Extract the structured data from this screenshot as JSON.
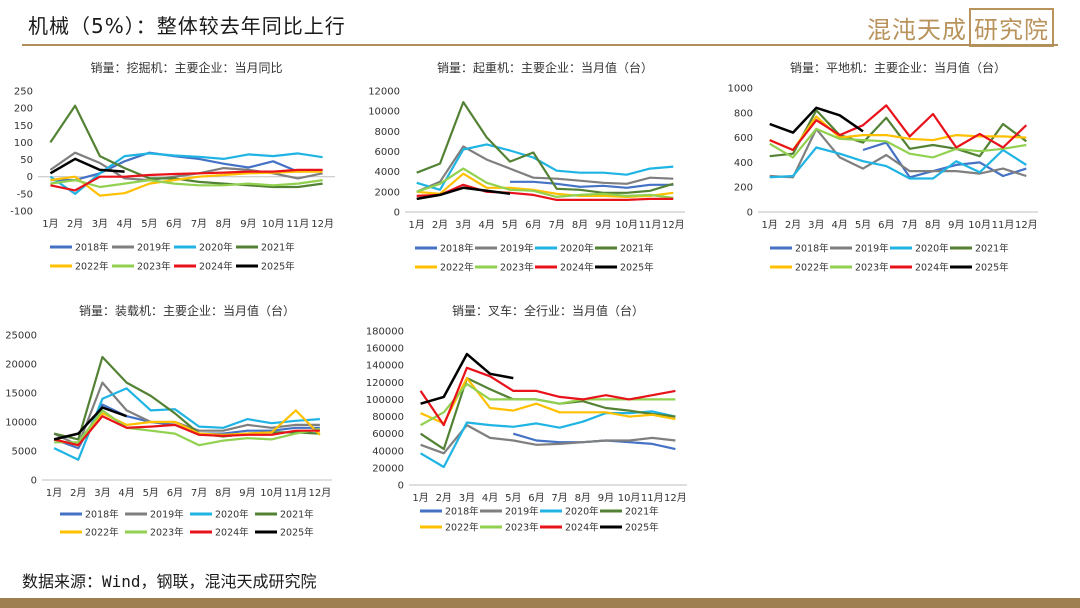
{
  "header": {
    "title": "机械（5%）：整体较去年同比上行",
    "logo_text": "混沌天成",
    "logo_box_text": "研究院"
  },
  "source": "数据来源：Wind，钢联，混沌天成研究院",
  "colors": {
    "2018年": "#4472c4",
    "2019年": "#7f7f7f",
    "2020年": "#1fb4e3",
    "2021年": "#548235",
    "2022年": "#ffc000",
    "2023年": "#92d050",
    "2024年": "#e8121a",
    "2025年": "#000000"
  },
  "chart_data": [
    {
      "type": "line",
      "title": "销量：挖掘机：主要企业：当月同比",
      "categories": [
        "1月",
        "2月",
        "3月",
        "4月",
        "5月",
        "6月",
        "7月",
        "8月",
        "9月",
        "10月",
        "11月",
        "12月"
      ],
      "ylim": [
        -100,
        250
      ],
      "yticks": [
        -100,
        -50,
        0,
        50,
        100,
        150,
        200,
        250
      ],
      "legend_position": "bottom",
      "series": [
        {
          "name": "2018年",
          "values": [
            -10,
            -10,
            10,
            45,
            70,
            60,
            52,
            38,
            27,
            45,
            15,
            18
          ]
        },
        {
          "name": "2019年",
          "values": [
            20,
            70,
            40,
            -5,
            -10,
            0,
            10,
            25,
            20,
            10,
            -5,
            10
          ]
        },
        {
          "name": "2020年",
          "values": [
            0,
            -50,
            10,
            60,
            68,
            62,
            58,
            52,
            65,
            60,
            68,
            57
          ]
        },
        {
          "name": "2021年",
          "values": [
            100,
            207,
            60,
            25,
            -5,
            -5,
            -15,
            -20,
            -25,
            -30,
            -30,
            -20
          ]
        },
        {
          "name": "2022年",
          "values": [
            -10,
            0,
            -55,
            -48,
            -20,
            -10,
            0,
            5,
            10,
            12,
            15,
            15
          ]
        },
        {
          "name": "2023年",
          "values": [
            -20,
            -10,
            -30,
            -20,
            -10,
            -20,
            -25,
            -25,
            -20,
            -25,
            -20,
            -10
          ]
        },
        {
          "name": "2024年",
          "values": [
            -25,
            -40,
            0,
            0,
            5,
            8,
            10,
            12,
            15,
            15,
            20,
            20
          ]
        },
        {
          "name": "2025年",
          "values": [
            10,
            52,
            20,
            15,
            null,
            null,
            null,
            null,
            null,
            null,
            null,
            null
          ]
        }
      ]
    },
    {
      "type": "line",
      "title": "销量：起重机：主要企业：当月值（台）",
      "categories": [
        "1月",
        "2月",
        "3月",
        "4月",
        "5月",
        "6月",
        "7月",
        "8月",
        "9月",
        "10月",
        "11月",
        "12月"
      ],
      "ylim": [
        0,
        12000
      ],
      "yticks": [
        0,
        2000,
        4000,
        6000,
        8000,
        10000,
        12000
      ],
      "legend_position": "bottom",
      "series": [
        {
          "name": "2018年",
          "values": [
            null,
            null,
            null,
            null,
            3000,
            3000,
            2800,
            2500,
            2600,
            2400,
            2700,
            2700
          ]
        },
        {
          "name": "2019年",
          "values": [
            2000,
            3000,
            6500,
            5200,
            4300,
            3400,
            3300,
            3100,
            2900,
            2800,
            3400,
            3300
          ]
        },
        {
          "name": "2020年",
          "values": [
            2900,
            2200,
            6200,
            6700,
            6100,
            5400,
            4100,
            3900,
            3900,
            3700,
            4300,
            4500
          ]
        },
        {
          "name": "2021年",
          "values": [
            3900,
            4800,
            10900,
            7400,
            5000,
            5900,
            2300,
            2200,
            1900,
            1900,
            2100,
            2800
          ]
        },
        {
          "name": "2022年",
          "values": [
            2000,
            1800,
            3800,
            2400,
            2400,
            2200,
            1800,
            1600,
            1600,
            1500,
            1600,
            1900
          ]
        },
        {
          "name": "2023年",
          "values": [
            2000,
            2800,
            4300,
            2900,
            2200,
            2100,
            1500,
            1700,
            1800,
            1600,
            1700,
            1400
          ]
        },
        {
          "name": "2024年",
          "values": [
            1600,
            1700,
            2700,
            2000,
            1900,
            1700,
            1200,
            1200,
            1200,
            1200,
            1300,
            1300
          ]
        },
        {
          "name": "2025年",
          "values": [
            1300,
            1700,
            2400,
            2100,
            1800,
            null,
            null,
            null,
            null,
            null,
            null,
            null
          ]
        }
      ]
    },
    {
      "type": "line",
      "title": "销量：平地机：主要企业：当月值（台）",
      "categories": [
        "1月",
        "2月",
        "3月",
        "4月",
        "5月",
        "6月",
        "7月",
        "8月",
        "9月",
        "10月",
        "11月",
        "12月"
      ],
      "ylim": [
        0,
        1000
      ],
      "yticks": [
        0,
        200,
        400,
        600,
        800,
        1000
      ],
      "legend_position": "bottom",
      "series": [
        {
          "name": "2018年",
          "values": [
            null,
            null,
            null,
            null,
            500,
            560,
            280,
            330,
            380,
            400,
            290,
            350
          ]
        },
        {
          "name": "2019年",
          "values": [
            290,
            280,
            670,
            440,
            350,
            460,
            330,
            330,
            330,
            310,
            350,
            290
          ]
        },
        {
          "name": "2020年",
          "values": [
            280,
            290,
            520,
            470,
            410,
            370,
            270,
            270,
            410,
            320,
            500,
            380
          ]
        },
        {
          "name": "2021年",
          "values": [
            450,
            470,
            820,
            620,
            560,
            760,
            510,
            540,
            510,
            450,
            710,
            570
          ]
        },
        {
          "name": "2022年",
          "values": [
            580,
            500,
            770,
            600,
            620,
            620,
            590,
            580,
            620,
            610,
            610,
            600
          ]
        },
        {
          "name": "2023年",
          "values": [
            550,
            440,
            670,
            590,
            580,
            570,
            470,
            440,
            510,
            490,
            510,
            540
          ]
        },
        {
          "name": "2024年",
          "values": [
            580,
            500,
            740,
            620,
            700,
            860,
            610,
            790,
            520,
            630,
            520,
            700
          ]
        },
        {
          "name": "2025年",
          "values": [
            710,
            640,
            840,
            780,
            650,
            null,
            null,
            null,
            null,
            null,
            null,
            null
          ]
        }
      ]
    },
    {
      "type": "line",
      "title": "销量：装载机：主要企业：当月值（台）",
      "categories": [
        "1月",
        "2月",
        "3月",
        "4月",
        "5月",
        "6月",
        "7月",
        "8月",
        "9月",
        "10月",
        "11月",
        "12月"
      ],
      "ylim": [
        0,
        25000
      ],
      "yticks": [
        0,
        5000,
        10000,
        15000,
        20000,
        25000
      ],
      "legend_position": "bottom",
      "series": [
        {
          "name": "2018年",
          "values": [
            7000,
            5500,
            13000,
            11000,
            10000,
            9500,
            8000,
            8000,
            8500,
            8500,
            9000,
            9000
          ]
        },
        {
          "name": "2019年",
          "values": [
            8000,
            6000,
            16800,
            12000,
            10000,
            10000,
            8500,
            8500,
            9500,
            9000,
            9500,
            9500
          ]
        },
        {
          "name": "2020年",
          "values": [
            5500,
            3500,
            14000,
            15800,
            12000,
            12200,
            9200,
            9000,
            10500,
            9800,
            10200,
            10500
          ]
        },
        {
          "name": "2021年",
          "values": [
            8000,
            7000,
            21200,
            16800,
            14500,
            11500,
            8000,
            7500,
            8000,
            8200,
            8200,
            8000
          ]
        },
        {
          "name": "2022年",
          "values": [
            7000,
            6000,
            11500,
            9500,
            10000,
            10000,
            8000,
            7800,
            8000,
            8200,
            12000,
            7800
          ]
        },
        {
          "name": "2023年",
          "values": [
            6500,
            6500,
            12000,
            9000,
            8500,
            8000,
            6000,
            6800,
            7200,
            7000,
            8000,
            8800
          ]
        },
        {
          "name": "2024年",
          "values": [
            7000,
            6000,
            11000,
            9000,
            9200,
            9500,
            7800,
            7600,
            7800,
            7800,
            8500,
            8500
          ]
        },
        {
          "name": "2025年",
          "values": [
            7000,
            8000,
            12500,
            11000,
            null,
            null,
            null,
            null,
            null,
            null,
            null,
            null
          ]
        }
      ]
    },
    {
      "type": "line",
      "title": "销量：叉车：全行业：当月值（台）",
      "categories": [
        "1月",
        "2月",
        "3月",
        "4月",
        "5月",
        "6月",
        "7月",
        "8月",
        "9月",
        "10月",
        "11月",
        "12月"
      ],
      "ylim": [
        0,
        180000
      ],
      "yticks": [
        0,
        20000,
        40000,
        60000,
        80000,
        100000,
        120000,
        140000,
        160000,
        180000
      ],
      "legend_position": "bottom",
      "series": [
        {
          "name": "2018年",
          "values": [
            null,
            null,
            null,
            null,
            60000,
            52000,
            50000,
            50000,
            52000,
            50000,
            48000,
            42000
          ]
        },
        {
          "name": "2019年",
          "values": [
            47000,
            37000,
            70000,
            55000,
            52000,
            47000,
            48000,
            50000,
            52000,
            52000,
            55000,
            52000
          ]
        },
        {
          "name": "2020年",
          "values": [
            37000,
            21000,
            73000,
            70000,
            68000,
            72000,
            67000,
            74000,
            84000,
            84000,
            86000,
            80000
          ]
        },
        {
          "name": "2021年",
          "values": [
            60000,
            42000,
            125000,
            112000,
            100000,
            100000,
            95000,
            98000,
            90000,
            87000,
            83000,
            80000
          ]
        },
        {
          "name": "2022年",
          "values": [
            84000,
            72000,
            125000,
            90000,
            87000,
            95000,
            85000,
            85000,
            85000,
            80000,
            82000,
            77000
          ]
        },
        {
          "name": "2023年",
          "values": [
            70000,
            85000,
            118000,
            100000,
            100000,
            100000,
            95000,
            100000,
            100000,
            100000,
            100000,
            100000
          ]
        },
        {
          "name": "2024年",
          "values": [
            110000,
            70000,
            137000,
            127000,
            110000,
            110000,
            103000,
            100000,
            105000,
            100000,
            105000,
            110000
          ]
        },
        {
          "name": "2025年",
          "values": [
            95000,
            103000,
            153000,
            130000,
            125000,
            null,
            null,
            null,
            null,
            null,
            null,
            null
          ]
        }
      ]
    }
  ]
}
